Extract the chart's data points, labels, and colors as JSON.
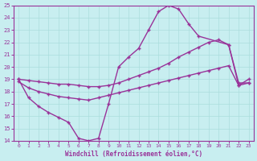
{
  "xlabel": "Windchill (Refroidissement éolien,°C)",
  "bg_color": "#c8eef0",
  "line_color": "#993399",
  "grid_color": "#aadddd",
  "xlim_min": -0.5,
  "xlim_max": 23.5,
  "ylim_min": 14,
  "ylim_max": 25,
  "xticks": [
    0,
    1,
    2,
    3,
    4,
    5,
    6,
    7,
    8,
    9,
    10,
    11,
    12,
    13,
    14,
    15,
    16,
    17,
    18,
    19,
    20,
    21,
    22,
    23
  ],
  "yticks": [
    14,
    15,
    16,
    17,
    18,
    19,
    20,
    21,
    22,
    23,
    24,
    25
  ],
  "curve1_x": [
    0,
    1,
    2,
    3,
    4,
    5,
    6,
    7,
    8,
    9,
    10,
    11,
    12,
    13,
    14,
    15,
    16,
    17,
    18,
    21,
    22,
    23
  ],
  "curve1_y": [
    19.0,
    17.5,
    16.8,
    16.3,
    15.9,
    15.5,
    14.2,
    14.0,
    14.2,
    17.0,
    20.0,
    20.8,
    21.5,
    23.0,
    24.5,
    25.0,
    24.7,
    23.5,
    22.5,
    21.8,
    18.5,
    19.0
  ],
  "curve2_x": [
    0,
    1,
    2,
    3,
    4,
    5,
    6,
    7,
    8,
    9,
    10,
    11,
    12,
    13,
    14,
    15,
    16,
    17,
    18,
    19,
    20,
    21,
    22,
    23
  ],
  "curve2_y": [
    18.8,
    18.3,
    18.0,
    17.8,
    17.6,
    17.5,
    17.4,
    17.3,
    17.5,
    17.7,
    17.9,
    18.1,
    18.3,
    18.5,
    18.7,
    18.9,
    19.1,
    19.3,
    19.5,
    19.7,
    19.9,
    20.1,
    18.5,
    18.7
  ],
  "curve3_x": [
    0,
    1,
    2,
    3,
    4,
    5,
    6,
    7,
    8,
    9,
    10,
    11,
    12,
    13,
    14,
    15,
    16,
    17,
    18,
    19,
    20,
    21,
    22,
    23
  ],
  "curve3_y": [
    19.0,
    18.9,
    18.8,
    18.7,
    18.6,
    18.6,
    18.5,
    18.4,
    18.4,
    18.5,
    18.7,
    19.0,
    19.3,
    19.6,
    19.9,
    20.3,
    20.8,
    21.2,
    21.6,
    22.0,
    22.2,
    21.8,
    18.7,
    18.7
  ]
}
